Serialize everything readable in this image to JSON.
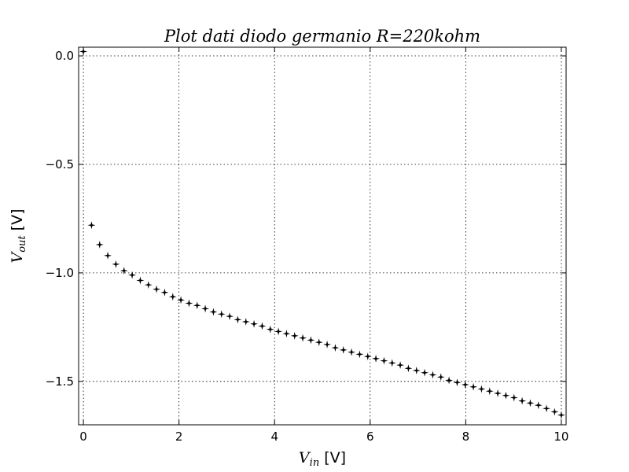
{
  "chart_data": {
    "type": "scatter",
    "title": "Plot dati diodo germanio R=220kohm",
    "title_parts": {
      "prefix": "Plot dati diodo germanio ",
      "var": "R",
      "eq": "=",
      "rest": "220kohm"
    },
    "xlabel": "V_in [V]",
    "xlabel_parts": {
      "var": "V",
      "sub": "in",
      "unit": " [V]"
    },
    "ylabel": "V_out [V]",
    "ylabel_parts": {
      "var": "V",
      "sub": "out",
      "unit": " [V]"
    },
    "xlim": [
      -0.1,
      10.1
    ],
    "ylim": [
      -1.7,
      0.04
    ],
    "xticks": [
      0,
      2,
      4,
      6,
      8,
      10
    ],
    "xtick_labels": [
      "0",
      "2",
      "4",
      "6",
      "8",
      "10"
    ],
    "yticks": [
      0.0,
      -0.5,
      -1.0,
      -1.5
    ],
    "ytick_labels": [
      "0.0",
      "−0.5",
      "−1.0",
      "−1.5"
    ],
    "grid": true,
    "marker": "star",
    "marker_color": "#000000",
    "series": [
      {
        "x": [
          0.0,
          0.17,
          0.34,
          0.51,
          0.68,
          0.85,
          1.02,
          1.19,
          1.36,
          1.53,
          1.7,
          1.87,
          2.04,
          2.21,
          2.38,
          2.55,
          2.72,
          2.89,
          3.06,
          3.23,
          3.4,
          3.57,
          3.74,
          3.91,
          4.08,
          4.25,
          4.42,
          4.59,
          4.76,
          4.93,
          5.1,
          5.27,
          5.44,
          5.61,
          5.78,
          5.95,
          6.12,
          6.29,
          6.46,
          6.63,
          6.8,
          6.97,
          7.14,
          7.31,
          7.48,
          7.65,
          7.82,
          7.99,
          8.16,
          8.33,
          8.5,
          8.67,
          8.84,
          9.01,
          9.18,
          9.35,
          9.52,
          9.69,
          9.86,
          10.0
        ],
        "y": [
          0.02,
          -0.78,
          -0.87,
          -0.92,
          -0.96,
          -0.99,
          -1.01,
          -1.035,
          -1.055,
          -1.075,
          -1.09,
          -1.11,
          -1.125,
          -1.14,
          -1.15,
          -1.165,
          -1.18,
          -1.19,
          -1.2,
          -1.215,
          -1.225,
          -1.235,
          -1.245,
          -1.26,
          -1.27,
          -1.28,
          -1.29,
          -1.3,
          -1.31,
          -1.32,
          -1.33,
          -1.345,
          -1.355,
          -1.365,
          -1.375,
          -1.385,
          -1.395,
          -1.405,
          -1.415,
          -1.425,
          -1.44,
          -1.45,
          -1.46,
          -1.47,
          -1.48,
          -1.495,
          -1.505,
          -1.515,
          -1.525,
          -1.535,
          -1.545,
          -1.555,
          -1.565,
          -1.575,
          -1.59,
          -1.6,
          -1.61,
          -1.625,
          -1.64,
          -1.655
        ]
      }
    ]
  }
}
